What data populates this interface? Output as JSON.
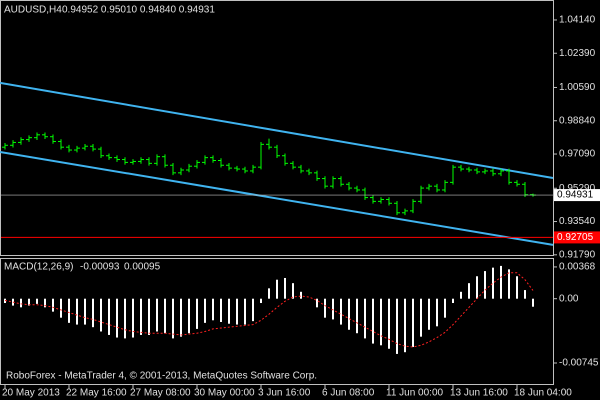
{
  "chart_data": [
    {
      "type": "ohlc",
      "title": "AUDUSD,H4",
      "subtitle": "0.94952 0.95010 0.94840 0.94931",
      "color": "#00ff00",
      "categories": [
        "20 May 2013",
        null,
        null,
        null,
        null,
        null,
        null,
        null,
        "22 May 16:00",
        null,
        null,
        null,
        null,
        null,
        null,
        null,
        "27 May 08:00",
        null,
        null,
        null,
        null,
        null,
        null,
        null,
        "30 May 00:00",
        null,
        null,
        null,
        null,
        null,
        null,
        null,
        "3 Jun 16:00",
        null,
        null,
        null,
        null,
        null,
        null,
        null,
        "6 Jun 08:00",
        null,
        null,
        null,
        null,
        null,
        null,
        null,
        "11 Jun 00:00",
        null,
        null,
        null,
        null,
        null,
        null,
        null,
        "13 Jun 16:00",
        null,
        null,
        null,
        null,
        null,
        null,
        null,
        "18 Jun 04:00",
        null,
        null
      ],
      "open": [
        0.9745,
        0.9755,
        0.977,
        0.9785,
        0.9795,
        0.981,
        0.98,
        0.9775,
        0.9745,
        0.973,
        0.974,
        0.975,
        0.9735,
        0.97,
        0.969,
        0.968,
        0.9665,
        0.967,
        0.968,
        0.966,
        0.9695,
        0.965,
        0.961,
        0.9625,
        0.9645,
        0.9665,
        0.969,
        0.9675,
        0.965,
        0.9635,
        0.963,
        0.962,
        0.964,
        0.976,
        0.9745,
        0.97,
        0.966,
        0.964,
        0.962,
        0.961,
        0.958,
        0.954,
        0.958,
        0.955,
        0.953,
        0.952,
        0.948,
        0.946,
        0.947,
        0.945,
        0.94,
        0.941,
        0.946,
        0.953,
        0.954,
        0.952,
        0.956,
        0.964,
        0.963,
        0.9625,
        0.9615,
        0.962,
        0.9605,
        0.962,
        0.956,
        0.955,
        0.94952
      ],
      "high": [
        0.9767,
        0.9782,
        0.9797,
        0.9807,
        0.9822,
        0.9822,
        0.9812,
        0.9787,
        0.9757,
        0.9752,
        0.9762,
        0.9762,
        0.9747,
        0.9712,
        0.9702,
        0.9692,
        0.9682,
        0.9692,
        0.9692,
        0.9707,
        0.9707,
        0.9662,
        0.9637,
        0.9657,
        0.9677,
        0.9702,
        0.9702,
        0.9687,
        0.9662,
        0.9647,
        0.9642,
        0.9652,
        0.9772,
        0.979,
        0.9757,
        0.9712,
        0.9672,
        0.9652,
        0.9632,
        0.9622,
        0.9592,
        0.9592,
        0.9592,
        0.9562,
        0.9542,
        0.9532,
        0.9492,
        0.9482,
        0.9482,
        0.9462,
        0.9422,
        0.9472,
        0.9542,
        0.9552,
        0.9552,
        0.9572,
        0.9652,
        0.9652,
        0.9642,
        0.9637,
        0.9632,
        0.9632,
        0.9632,
        0.9632,
        0.9572,
        0.9562,
        0.9501
      ],
      "low": [
        0.9733,
        0.9743,
        0.9758,
        0.9773,
        0.9783,
        0.9788,
        0.9763,
        0.9733,
        0.9718,
        0.9718,
        0.9728,
        0.9723,
        0.9688,
        0.9678,
        0.9668,
        0.9653,
        0.9653,
        0.9658,
        0.9648,
        0.9648,
        0.9638,
        0.9598,
        0.9598,
        0.9613,
        0.9633,
        0.9653,
        0.9663,
        0.9638,
        0.9623,
        0.9618,
        0.9608,
        0.9608,
        0.9628,
        0.9733,
        0.9688,
        0.9648,
        0.9628,
        0.9608,
        0.9598,
        0.9568,
        0.9528,
        0.9528,
        0.9538,
        0.9518,
        0.9508,
        0.9468,
        0.9448,
        0.9448,
        0.9438,
        0.9388,
        0.9388,
        0.9398,
        0.9448,
        0.9518,
        0.9508,
        0.9508,
        0.9548,
        0.9618,
        0.9613,
        0.9603,
        0.9603,
        0.9593,
        0.9593,
        0.9548,
        0.9538,
        0.9483,
        0.9484
      ],
      "close": [
        0.9755,
        0.977,
        0.9785,
        0.9795,
        0.981,
        0.98,
        0.9775,
        0.9745,
        0.973,
        0.974,
        0.975,
        0.9735,
        0.97,
        0.969,
        0.968,
        0.9665,
        0.967,
        0.968,
        0.966,
        0.9695,
        0.965,
        0.961,
        0.9625,
        0.9645,
        0.9665,
        0.969,
        0.9675,
        0.965,
        0.9635,
        0.963,
        0.962,
        0.964,
        0.976,
        0.9745,
        0.97,
        0.966,
        0.964,
        0.962,
        0.961,
        0.958,
        0.954,
        0.958,
        0.955,
        0.953,
        0.952,
        0.948,
        0.946,
        0.947,
        0.945,
        0.94,
        0.941,
        0.946,
        0.953,
        0.954,
        0.952,
        0.956,
        0.964,
        0.963,
        0.9625,
        0.9615,
        0.962,
        0.9605,
        0.962,
        0.956,
        0.955,
        0.9495,
        0.94931
      ],
      "ylim": [
        0.9178,
        1.0519
      ],
      "yticks": [
        {
          "value": 1.0414,
          "label": "1.04140"
        },
        {
          "value": 1.0239,
          "label": "1.02390"
        },
        {
          "value": 1.0059,
          "label": "1.00590"
        },
        {
          "value": 0.9884,
          "label": "0.98840"
        },
        {
          "value": 0.9709,
          "label": "0.97090"
        },
        {
          "value": 0.9529,
          "label": "0.95290"
        },
        {
          "value": 0.9354,
          "label": "0.93540"
        },
        {
          "value": 0.9179,
          "label": "0.91790"
        }
      ],
      "support_level": 0.92705,
      "support_color": "#ff0000",
      "trendline_color": "#40b4f0",
      "trendlines": [
        {
          "start": [
            -0.625,
            1.0083
          ],
          "end": [
            68.5,
            0.9583
          ]
        },
        {
          "start": [
            -0.625,
            0.972
          ],
          "end": [
            68.5,
            0.9231
          ]
        }
      ]
    },
    {
      "type": "macd",
      "title": "MACD(12,26,9)",
      "histogram_color": "#ffffff",
      "signal_color": "#ff2020",
      "histogram": [
        -0.0005,
        -0.0008,
        -0.001,
        -0.0008,
        -0.0006,
        -0.001,
        -0.0015,
        -0.0022,
        -0.0028,
        -0.003,
        -0.003,
        -0.0033,
        -0.0038,
        -0.0042,
        -0.0045,
        -0.0046,
        -0.0045,
        -0.0042,
        -0.0042,
        -0.0038,
        -0.004,
        -0.0046,
        -0.0044,
        -0.004,
        -0.0035,
        -0.0028,
        -0.0025,
        -0.0027,
        -0.0029,
        -0.003,
        -0.003,
        -0.0026,
        -0.0005,
        0.0012,
        0.0022,
        0.0024,
        0.0018,
        0.0008,
        0,
        -0.001,
        -0.0022,
        -0.0024,
        -0.003,
        -0.0036,
        -0.004,
        -0.0046,
        -0.0052,
        -0.0054,
        -0.0058,
        -0.0064,
        -0.0062,
        -0.0056,
        -0.0044,
        -0.0036,
        -0.0032,
        -0.0022,
        -0.0005,
        0.0008,
        0.0018,
        0.0026,
        0.0032,
        0.0036,
        0.0038,
        0.0034,
        0.0026,
        0.001,
        -0.00093
      ],
      "signal": [
        -0.0002,
        -0.0004,
        -0.0006,
        -0.0007,
        -0.0007,
        -0.0008,
        -0.001,
        -0.0013,
        -0.0016,
        -0.0019,
        -0.0022,
        -0.0024,
        -0.0027,
        -0.003,
        -0.0033,
        -0.0036,
        -0.0038,
        -0.0039,
        -0.004,
        -0.004,
        -0.004,
        -0.0041,
        -0.0042,
        -0.0041,
        -0.004,
        -0.0038,
        -0.0035,
        -0.0034,
        -0.0033,
        -0.0032,
        -0.0031,
        -0.003,
        -0.0025,
        -0.0018,
        -0.001,
        -0.0003,
        0.0002,
        0.0003,
        0.0002,
        -0.0002,
        -0.0008,
        -0.0013,
        -0.0018,
        -0.0023,
        -0.0028,
        -0.0033,
        -0.0038,
        -0.0043,
        -0.0047,
        -0.0052,
        -0.0055,
        -0.0056,
        -0.0054,
        -0.005,
        -0.0045,
        -0.0039,
        -0.003,
        -0.002,
        -0.001,
        0,
        0.001,
        0.0018,
        0.0025,
        0.003,
        0.003,
        0.0022,
        0.00095
      ],
      "ylim": [
        -0.01,
        0.0046
      ],
      "yticks": [
        0.00368,
        {
          "value": 0,
          "label": "0.00"
        },
        -0.00745
      ]
    }
  ],
  "footer": "RoboForex - MetaTrader 4, © 2001-2013, MetaQuotes Software Corp."
}
